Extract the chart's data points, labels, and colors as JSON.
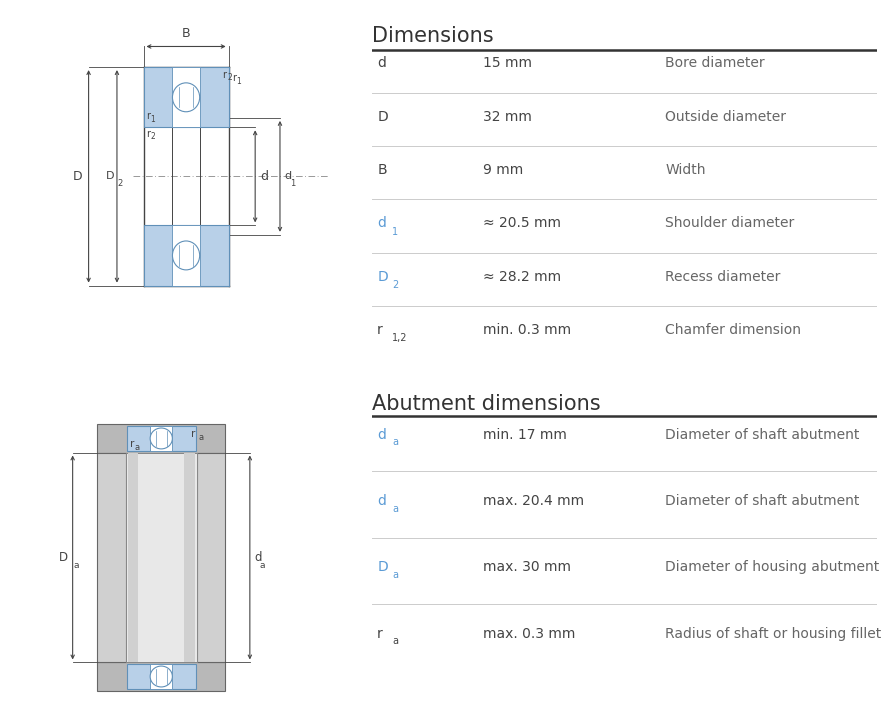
{
  "title1": "Dimensions",
  "title2": "Abutment dimensions",
  "dim_rows": [
    {
      "sym": "d",
      "sub": "",
      "value": "15 mm",
      "desc": "Bore diameter",
      "sym_color": "#444444",
      "desc_color": "#666666"
    },
    {
      "sym": "D",
      "sub": "",
      "value": "32 mm",
      "desc": "Outside diameter",
      "sym_color": "#444444",
      "desc_color": "#666666"
    },
    {
      "sym": "B",
      "sub": "",
      "value": "9 mm",
      "desc": "Width",
      "sym_color": "#444444",
      "desc_color": "#666666"
    },
    {
      "sym": "d",
      "sub": "1",
      "value": "≈ 20.5 mm",
      "desc": "Shoulder diameter",
      "sym_color": "#5b9bd5",
      "desc_color": "#666666"
    },
    {
      "sym": "D",
      "sub": "2",
      "value": "≈ 28.2 mm",
      "desc": "Recess diameter",
      "sym_color": "#5b9bd5",
      "desc_color": "#666666"
    },
    {
      "sym": "r",
      "sub": "1,2",
      "value": "min. 0.3 mm",
      "desc": "Chamfer dimension",
      "sym_color": "#444444",
      "desc_color": "#666666"
    }
  ],
  "abut_rows": [
    {
      "sym": "d",
      "sub": "a",
      "value": "min. 17 mm",
      "desc": "Diameter of shaft abutment",
      "sym_color": "#5b9bd5",
      "desc_color": "#666666"
    },
    {
      "sym": "d",
      "sub": "a",
      "value": "max. 20.4 mm",
      "desc": "Diameter of shaft abutment",
      "sym_color": "#5b9bd5",
      "desc_color": "#666666"
    },
    {
      "sym": "D",
      "sub": "a",
      "value": "max. 30 mm",
      "desc": "Diameter of housing abutment",
      "sym_color": "#5b9bd5",
      "desc_color": "#666666"
    },
    {
      "sym": "r",
      "sub": "a",
      "value": "max. 0.3 mm",
      "desc": "Radius of shaft or housing fillet",
      "sym_color": "#444444",
      "desc_color": "#666666"
    }
  ],
  "bg_color": "#ffffff",
  "line_color_light": "#cccccc",
  "line_color_dark": "#222222",
  "bearing_blue": "#b8d0e8",
  "bearing_blue_stroke": "#6090b8",
  "dim_line_color": "#444444",
  "title_color": "#333333",
  "val_color": "#444444"
}
